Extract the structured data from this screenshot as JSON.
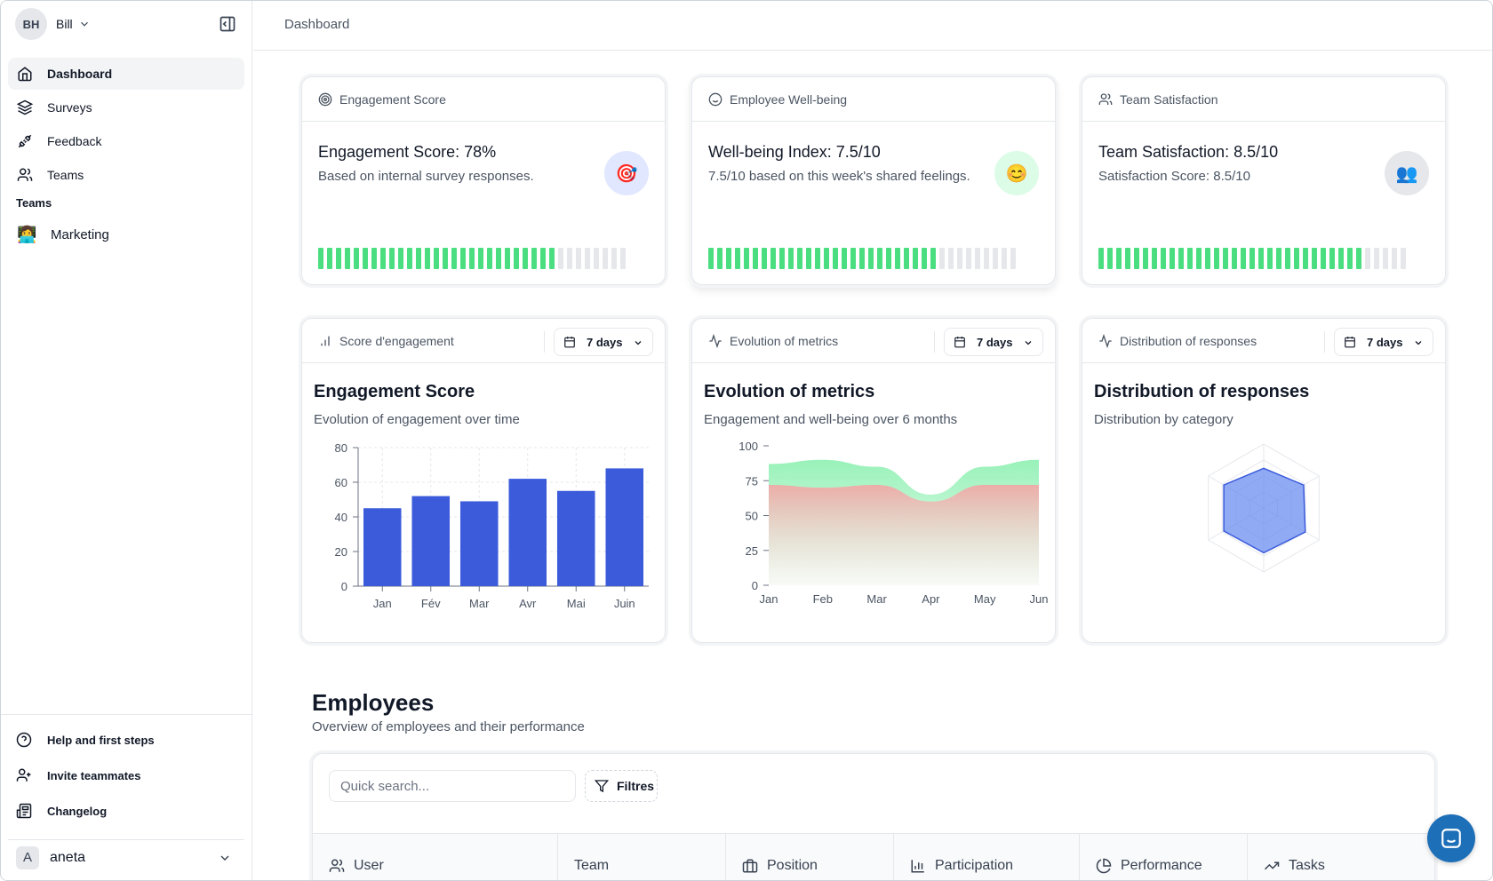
{
  "user": {
    "initials": "BH",
    "name": "Bill"
  },
  "sidebar": {
    "nav": [
      {
        "label": "Dashboard",
        "icon": "home-icon"
      },
      {
        "label": "Surveys",
        "icon": "layers-icon"
      },
      {
        "label": "Feedback",
        "icon": "plug-icon"
      },
      {
        "label": "Teams",
        "icon": "users-icon"
      }
    ],
    "group_label": "Teams",
    "teams": [
      {
        "emoji": "👩‍💻",
        "name": "Marketing"
      }
    ],
    "bottom": [
      {
        "label": "Help and first steps",
        "icon": "help-circle-icon"
      },
      {
        "label": "Invite teammates",
        "icon": "user-plus-icon"
      },
      {
        "label": "Changelog",
        "icon": "newspaper-icon"
      }
    ],
    "account": {
      "initial": "A",
      "name": "aneta"
    }
  },
  "header": {
    "breadcrumb": "Dashboard"
  },
  "metrics": [
    {
      "head": "Engagement Score",
      "title": "Engagement Score: 78%",
      "subtitle": "Based on internal survey responses.",
      "badge": "🎯",
      "badge_bg": "#e0e7ff",
      "fill": 0.78
    },
    {
      "head": "Employee Well-being",
      "title": "Well-being Index: 7.5/10",
      "subtitle": "7.5/10 based on this week's shared feelings.",
      "badge": "😊",
      "badge_bg": "#dcfce7",
      "fill": 0.75
    },
    {
      "head": "Team Satisfaction",
      "title": "Team Satisfaction: 8.5/10",
      "subtitle": "Satisfaction Score: 8.5/10",
      "badge": "👥",
      "badge_bg": "#e5e7eb",
      "fill": 0.85
    }
  ],
  "colors": {
    "bar_fill": "#3b5bdb",
    "seg_on": "#4ade80",
    "seg_off": "#e5e7eb",
    "wellbeing": "#86efac",
    "engagement": "#fca5a5",
    "radar": "#6b8ef0",
    "chat": "#1d6fb8"
  },
  "charts_panel": [
    {
      "head": "Score d'engagement",
      "range": "7 days",
      "title": "Engagement Score",
      "subtitle": "Evolution of engagement over time"
    },
    {
      "head": "Evolution of metrics",
      "range": "7 days",
      "title": "Evolution of metrics",
      "subtitle": "Engagement and well-being over 6 months"
    },
    {
      "head": "Distribution of responses",
      "range": "7 days",
      "title": "Distribution of responses",
      "subtitle": "Distribution by category"
    }
  ],
  "chart_data": [
    {
      "type": "bar",
      "categories": [
        "Jan",
        "Fév",
        "Mar",
        "Avr",
        "Mai",
        "Juin"
      ],
      "values": [
        45,
        52,
        49,
        62,
        55,
        68
      ],
      "ylim": [
        0,
        80
      ],
      "yticks": [
        0,
        20,
        40,
        60,
        80
      ],
      "grid": true
    },
    {
      "type": "area",
      "categories": [
        "Jan",
        "Feb",
        "Mar",
        "Apr",
        "May",
        "Jun"
      ],
      "series": [
        {
          "values": [
            72,
            70,
            72,
            60,
            72,
            72
          ]
        },
        {
          "values": [
            87,
            90,
            85,
            65,
            85,
            90
          ]
        }
      ],
      "ylim": [
        0,
        100
      ],
      "yticks": [
        0,
        25,
        50,
        75,
        100
      ],
      "stacked": false
    },
    {
      "type": "radar",
      "axes": 6,
      "values": [
        0.62,
        0.72,
        0.75,
        0.7,
        0.72,
        0.72
      ],
      "rings": 4
    }
  ],
  "employees": {
    "title": "Employees",
    "subtitle": "Overview of employees and their performance",
    "search_placeholder": "Quick search...",
    "filter_label": "Filtres",
    "columns": [
      {
        "label": "User",
        "icon": "users-icon"
      },
      {
        "label": "Team",
        "icon": ""
      },
      {
        "label": "Position",
        "icon": "briefcase-icon"
      },
      {
        "label": "Participation",
        "icon": "bar-chart-icon"
      },
      {
        "label": "Performance",
        "icon": "pie-chart-icon"
      },
      {
        "label": "Tasks",
        "icon": "trending-up-icon"
      }
    ]
  }
}
